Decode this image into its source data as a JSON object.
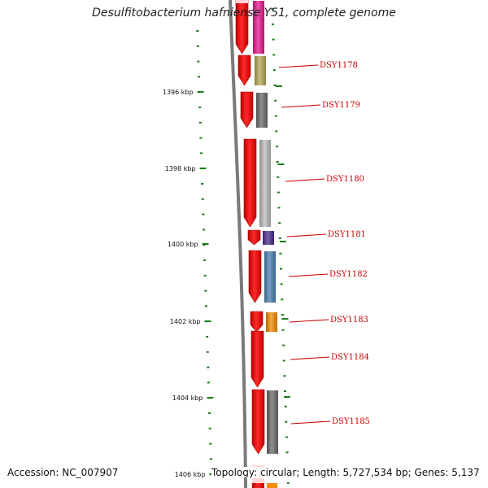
{
  "title": "Desulfitobacterium hafniense Y51, complete genome",
  "accession_text": "Accession: NC_007907",
  "summary_text": "Topology: circular; Length: 5,727,534 bp; Genes: 5,137",
  "colors": {
    "backbone": "#7a7a7a",
    "cds_strand": "#ff0000",
    "tick": "#1a7a1a",
    "label": "#cc0000"
  },
  "scale_labels": [
    "1396 kbp",
    "1398 kbp",
    "1400 kbp",
    "1402 kbp",
    "1404 kbp",
    "1406 kbp"
  ],
  "genes": [
    {
      "id": "top-partial",
      "label": "",
      "cog_color": "#e6198f"
    },
    {
      "id": "DSY1178",
      "label": "DSY1178",
      "cog_color": "#b4a856"
    },
    {
      "id": "DSY1179",
      "label": "DSY1179",
      "cog_color": "#6b6b6b"
    },
    {
      "id": "DSY1180",
      "label": "DSY1180",
      "cog_color": "#bdbdbd"
    },
    {
      "id": "DSY1181",
      "label": "DSY1181",
      "cog_color": "#4b2d8a"
    },
    {
      "id": "DSY1182",
      "label": "DSY1182",
      "cog_color": "#4a7fb0"
    },
    {
      "id": "DSY1183",
      "label": "DSY1183",
      "cog_color": "#f28c00"
    },
    {
      "id": "DSY1184",
      "label": "DSY1184",
      "cog_color": ""
    },
    {
      "id": "DSY1185",
      "label": "DSY1185",
      "cog_color": "#6b6b6b"
    }
  ]
}
